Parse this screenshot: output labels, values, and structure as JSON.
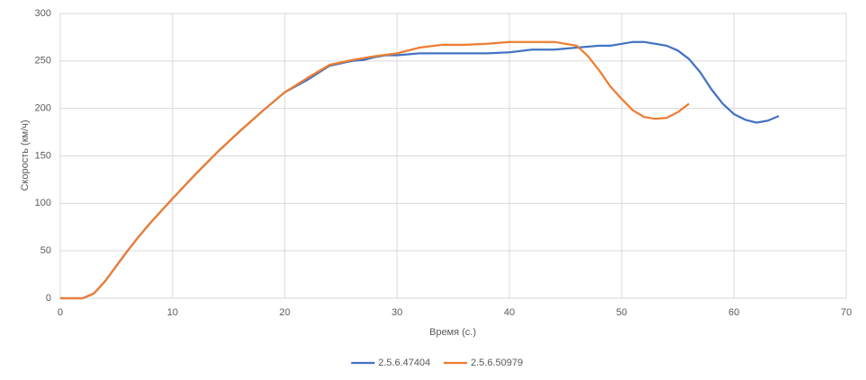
{
  "chart_data": {
    "type": "line",
    "x_label": "Время (с.)",
    "y_label": "Скорость (км/ч)",
    "xlim": [
      0,
      70
    ],
    "xticks": [
      0,
      10,
      20,
      30,
      40,
      50,
      60,
      70
    ],
    "ylim": [
      0,
      300
    ],
    "yticks": [
      0,
      50,
      100,
      150,
      200,
      250,
      300
    ],
    "grid": true,
    "legend": "bottom",
    "series": [
      {
        "name": "2.5.6.47404",
        "color": "#4472c4",
        "x": [
          0,
          1,
          2,
          3,
          4,
          5,
          6,
          7,
          8,
          10,
          12,
          14,
          16,
          18,
          20,
          22,
          24,
          26,
          27,
          28,
          29,
          30,
          32,
          34,
          36,
          38,
          40,
          42,
          44,
          46,
          48,
          49,
          50,
          51,
          52,
          54,
          55,
          56,
          57,
          58,
          59,
          60,
          61,
          62,
          63,
          64
        ],
        "values": [
          0,
          0,
          0,
          5,
          18,
          34,
          50,
          65,
          79,
          105,
          130,
          154,
          176,
          197,
          217,
          230,
          245,
          250,
          251,
          254,
          256,
          256,
          258,
          258,
          258,
          258,
          259,
          262,
          262,
          264,
          266,
          266,
          268,
          270,
          270,
          266,
          261,
          252,
          238,
          220,
          205,
          194,
          188,
          185,
          187,
          192
        ]
      },
      {
        "name": "2.5.6.50979",
        "color": "#ed7d31",
        "x": [
          0,
          1,
          2,
          3,
          4,
          5,
          6,
          7,
          8,
          10,
          12,
          14,
          16,
          18,
          20,
          22,
          24,
          26,
          28,
          30,
          32,
          34,
          36,
          38,
          40,
          42,
          44,
          46,
          47,
          48,
          49,
          50,
          51,
          52,
          53,
          54,
          55,
          56
        ],
        "values": [
          0,
          0,
          0,
          5,
          18,
          34,
          50,
          65,
          79,
          105,
          130,
          154,
          176,
          197,
          217,
          232,
          246,
          251,
          255,
          258,
          264,
          267,
          267,
          268,
          270,
          270,
          270,
          266,
          255,
          240,
          223,
          210,
          198,
          191,
          189,
          190,
          196,
          205
        ]
      }
    ]
  }
}
